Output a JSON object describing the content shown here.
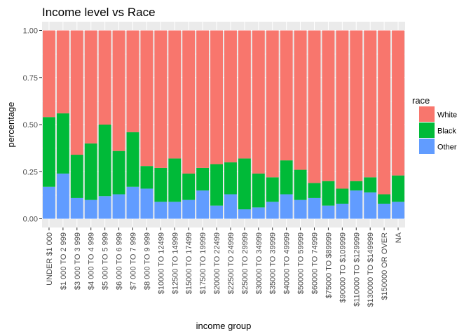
{
  "chart_data": {
    "type": "bar",
    "stacked": true,
    "title": "Income level vs Race",
    "xlabel": "income group",
    "ylabel": "percentage",
    "ylim": [
      0,
      1
    ],
    "yticks": [
      0,
      0.25,
      0.5,
      0.75,
      1
    ],
    "ytick_labels": [
      "0.00",
      "0.25",
      "0.50",
      "0.75",
      "1.00"
    ],
    "grid": true,
    "legend_position": "right",
    "legend_title": "race",
    "categories": [
      "UNDER $1 000",
      "$1 000 TO 2 999",
      "$3 000 TO 3 999",
      "$4 000 TO 4 999",
      "$5 000 TO 5 999",
      "$6 000 TO 6 999",
      "$7 000 TO 7 999",
      "$8 000 TO 9 999",
      "$10000 TO 12499",
      "$12500 TO 14999",
      "$15000 TO 17499",
      "$17500 TO 19999",
      "$20000 TO 22499",
      "$22500 TO 24999",
      "$25000 TO 29999",
      "$30000 TO 34999",
      "$35000 TO 39999",
      "$40000 TO 49999",
      "$50000 TO 59999",
      "$60000 TO 74999",
      "$75000 TO $89999",
      "$90000 TO $109999",
      "$110000 TO $129999",
      "$130000 TO $149999",
      "$150000 OR OVER",
      "NA"
    ],
    "series": [
      {
        "name": "Other",
        "color": "#619CFF",
        "values": [
          0.17,
          0.24,
          0.11,
          0.1,
          0.12,
          0.13,
          0.17,
          0.16,
          0.09,
          0.09,
          0.1,
          0.15,
          0.07,
          0.13,
          0.05,
          0.06,
          0.09,
          0.13,
          0.1,
          0.11,
          0.07,
          0.08,
          0.15,
          0.14,
          0.08,
          0.09
        ]
      },
      {
        "name": "Black",
        "color": "#00BA38",
        "values": [
          0.37,
          0.32,
          0.23,
          0.3,
          0.38,
          0.23,
          0.29,
          0.12,
          0.18,
          0.23,
          0.14,
          0.12,
          0.22,
          0.17,
          0.27,
          0.18,
          0.13,
          0.18,
          0.16,
          0.08,
          0.13,
          0.08,
          0.05,
          0.08,
          0.05,
          0.14
        ]
      },
      {
        "name": "White",
        "color": "#F8766D",
        "values": [
          0.46,
          0.44,
          0.66,
          0.6,
          0.5,
          0.64,
          0.54,
          0.72,
          0.73,
          0.68,
          0.76,
          0.73,
          0.71,
          0.7,
          0.68,
          0.76,
          0.78,
          0.69,
          0.74,
          0.81,
          0.8,
          0.84,
          0.8,
          0.78,
          0.87,
          0.77
        ]
      }
    ],
    "legend_order": [
      "White",
      "Black",
      "Other"
    ]
  }
}
